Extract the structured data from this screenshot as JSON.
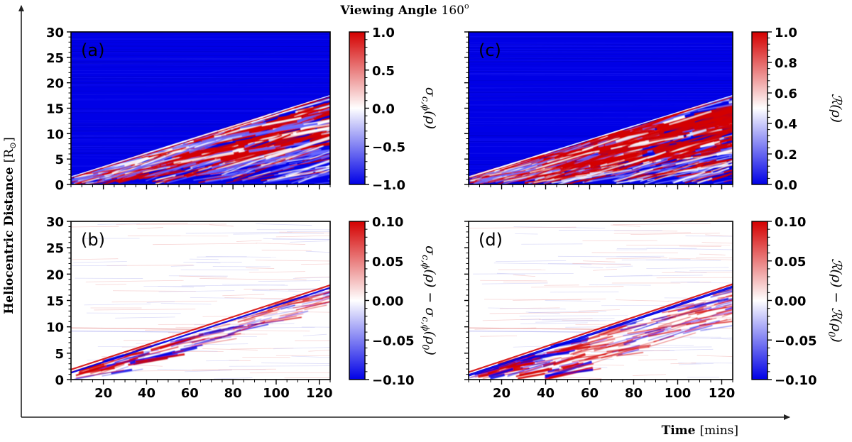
{
  "figure": {
    "title_bold": "Viewing Angle",
    "title_value": "160",
    "title_sup": "o",
    "xlabel_bold": "Time",
    "xlabel_unit": "[mins]",
    "ylabel_text": "Heliocentric Distance",
    "ylabel_unit": "R",
    "ylabel_unit_sub": "⊙"
  },
  "colors": {
    "red": "#d40000",
    "blue": "#0000e6",
    "white": "#ffffff"
  },
  "chart_data": [
    {
      "type": "heatmap",
      "panel": "(a)",
      "xlim": [
        5,
        125
      ],
      "ylim": [
        0,
        30
      ],
      "x_ticks": [
        "20",
        "40",
        "60",
        "80",
        "100",
        "120"
      ],
      "x_tick_values": [
        20,
        40,
        60,
        80,
        100,
        120
      ],
      "y_ticks": [
        "0",
        "5",
        "10",
        "15",
        "20",
        "25",
        "30"
      ],
      "y_tick_values": [
        0,
        5,
        10,
        15,
        20,
        25,
        30
      ],
      "show_xticklabels": false,
      "colorbar": {
        "label": "σ_{c,ϕ}(ρ)",
        "label_parts": [
          "σ",
          "c,ϕ",
          "(ρ)"
        ],
        "range": [
          -1.0,
          1.0
        ],
        "ticks": [
          "1.0",
          "0.5",
          "0.0",
          "−0.5",
          "−1.0"
        ],
        "tick_values": [
          1.0,
          0.5,
          0.0,
          -0.5,
          -1.0
        ]
      },
      "features": {
        "background": -1.0,
        "front_line": {
          "x": [
            5,
            125
          ],
          "y": [
            1.5,
            17.5
          ]
        },
        "active_region": "mixed red/blue structure below the front line, strongest red near 8–12 R⊙ at 60–125 mins"
      }
    },
    {
      "type": "heatmap",
      "panel": "(c)",
      "xlim": [
        5,
        125
      ],
      "ylim": [
        0,
        30
      ],
      "x_ticks": [
        "20",
        "40",
        "60",
        "80",
        "100",
        "120"
      ],
      "x_tick_values": [
        20,
        40,
        60,
        80,
        100,
        120
      ],
      "y_ticks": [
        "0",
        "5",
        "10",
        "15",
        "20",
        "25",
        "30"
      ],
      "y_tick_values": [
        0,
        5,
        10,
        15,
        20,
        25,
        30
      ],
      "show_xticklabels": false,
      "colorbar": {
        "label": "R(ρ)",
        "label_parts": [
          "ℛ",
          "",
          "(ρ)"
        ],
        "range": [
          0.0,
          1.0
        ],
        "ticks": [
          "1.0",
          "0.8",
          "0.6",
          "0.4",
          "0.2",
          "0.0"
        ],
        "tick_values": [
          1.0,
          0.8,
          0.6,
          0.4,
          0.2,
          0.0
        ]
      },
      "features": {
        "background": 0.0,
        "front_line": {
          "x": [
            5,
            125
          ],
          "y": [
            1.5,
            17.5
          ]
        },
        "active_region": "strong red structure below the front line, densest near 8–13 R⊙ at 70–125 mins"
      }
    },
    {
      "type": "heatmap",
      "panel": "(b)",
      "xlim": [
        5,
        125
      ],
      "ylim": [
        0,
        30
      ],
      "x_ticks": [
        "20",
        "40",
        "60",
        "80",
        "100",
        "120"
      ],
      "x_tick_values": [
        20,
        40,
        60,
        80,
        100,
        120
      ],
      "y_ticks": [
        "0",
        "5",
        "10",
        "15",
        "20",
        "25",
        "30"
      ],
      "y_tick_values": [
        0,
        5,
        10,
        15,
        20,
        25,
        30
      ],
      "show_xticklabels": true,
      "colorbar": {
        "label": "σ_{c,ϕ}(ρ) − σ_{c,ϕ}(ρ_0)",
        "label_parts": [
          "σ",
          "c,ϕ",
          "(ρ) − ",
          "σ",
          "c,ϕ",
          "(ρ",
          "0",
          ")"
        ],
        "range": [
          -0.1,
          0.1
        ],
        "ticks": [
          "0.10",
          "0.05",
          "0.00",
          "−0.05",
          "−0.10"
        ],
        "tick_values": [
          0.1,
          0.05,
          0.0,
          -0.05,
          -0.1
        ]
      },
      "features": {
        "background": 0.0,
        "front_line": {
          "x": [
            5,
            125
          ],
          "y": [
            1.5,
            17.8
          ]
        },
        "faint_band_y": 9.8
      }
    },
    {
      "type": "heatmap",
      "panel": "(d)",
      "xlim": [
        5,
        125
      ],
      "ylim": [
        0,
        30
      ],
      "x_ticks": [
        "20",
        "40",
        "60",
        "80",
        "100",
        "120"
      ],
      "x_tick_values": [
        20,
        40,
        60,
        80,
        100,
        120
      ],
      "y_ticks": [
        "0",
        "5",
        "10",
        "15",
        "20",
        "25",
        "30"
      ],
      "y_tick_values": [
        0,
        5,
        10,
        15,
        20,
        25,
        30
      ],
      "show_xticklabels": true,
      "colorbar": {
        "label": "R(ρ) − R(ρ_0)",
        "label_parts": [
          "ℛ",
          "",
          "(ρ) − ",
          "ℛ",
          "",
          "(ρ",
          "0",
          ")"
        ],
        "range": [
          -0.1,
          0.1
        ],
        "ticks": [
          "0.10",
          "0.05",
          "0.00",
          "−0.05",
          "−0.10"
        ],
        "tick_values": [
          0.1,
          0.05,
          0.0,
          -0.05,
          -0.1
        ]
      },
      "features": {
        "background": 0.0,
        "front_line": {
          "x": [
            5,
            125
          ],
          "y": [
            1.0,
            18.0
          ]
        },
        "faint_band_y": 9.8
      }
    }
  ]
}
